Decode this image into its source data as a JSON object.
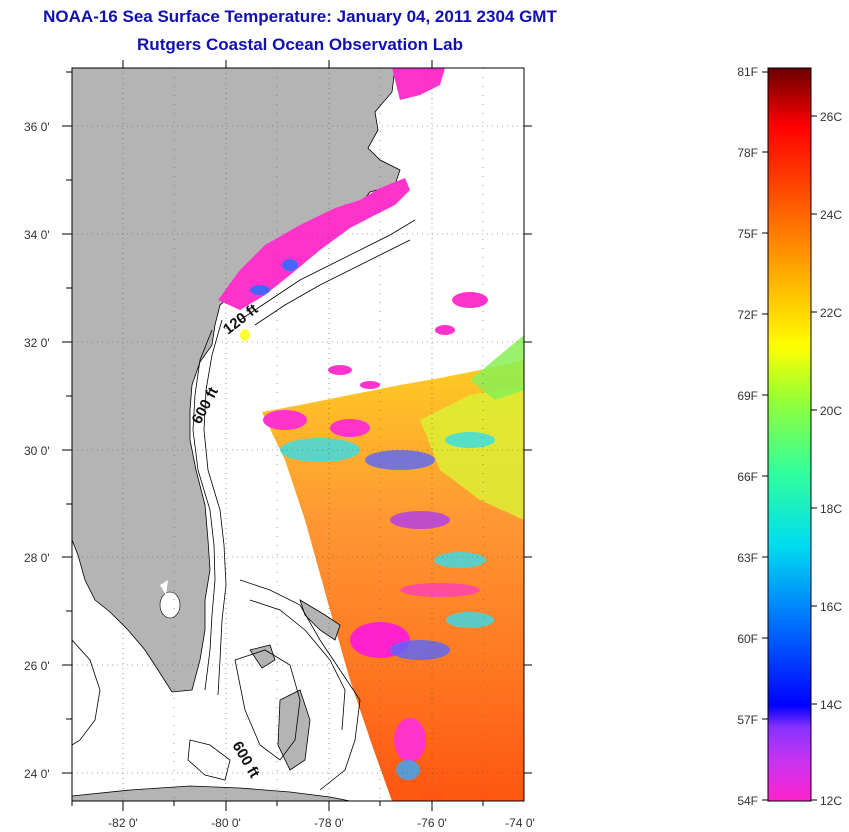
{
  "title": "NOAA-16 Sea Surface Temperature:  January 04, 2011 2304 GMT",
  "subtitle": "Rutgers Coastal Ocean Observation Lab",
  "map": {
    "lat_labels": [
      "36 0'",
      "34 0'",
      "32 0'",
      "30 0'",
      "28 0'",
      "26 0'",
      "24 0'"
    ],
    "lon_labels": [
      "-82 0'",
      "-80 0'",
      "-78 0'",
      "-76 0'",
      "-74 0'"
    ],
    "depth_labels": [
      "120 ft",
      "600 ft",
      "600 ft"
    ],
    "land_color": "#b4b4b4",
    "cloud_color": "#ff33cc"
  },
  "colorbar": {
    "fahrenheit_labels": [
      "81F",
      "78F",
      "75F",
      "72F",
      "69F",
      "66F",
      "63F",
      "60F",
      "57F",
      "54F"
    ],
    "celsius_labels": [
      "26C",
      "24C",
      "22C",
      "20C",
      "18C",
      "16C",
      "14C",
      "12C"
    ],
    "colors": [
      "#ff22cc",
      "#8833ff",
      "#0000ff",
      "#00aaff",
      "#00e0e0",
      "#33ff99",
      "#99ff33",
      "#ffff00",
      "#ffaa00",
      "#ff6600",
      "#ff0000",
      "#7a0000"
    ]
  }
}
